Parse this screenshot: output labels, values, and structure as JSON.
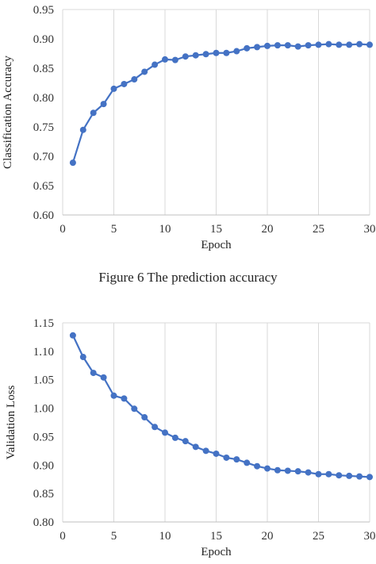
{
  "caption": "Figure 6 The prediction accuracy",
  "chart_data": [
    {
      "type": "line",
      "xlabel": "Epoch",
      "ylabel": "Classification Accuracy",
      "xlim": [
        0,
        30
      ],
      "ylim": [
        0.6,
        0.95
      ],
      "xticks": [
        "0",
        "5",
        "10",
        "15",
        "20",
        "25",
        "30"
      ],
      "yticks": [
        "0.60",
        "0.65",
        "0.70",
        "0.75",
        "0.80",
        "0.85",
        "0.90",
        "0.95"
      ],
      "grid": "vertical",
      "color": "#4472C4",
      "x": [
        1,
        2,
        3,
        4,
        5,
        6,
        7,
        8,
        9,
        10,
        11,
        12,
        13,
        14,
        15,
        16,
        17,
        18,
        19,
        20,
        21,
        22,
        23,
        24,
        25,
        26,
        27,
        28,
        29,
        30
      ],
      "y": [
        0.689,
        0.745,
        0.774,
        0.789,
        0.815,
        0.823,
        0.831,
        0.844,
        0.856,
        0.865,
        0.864,
        0.87,
        0.872,
        0.874,
        0.876,
        0.876,
        0.879,
        0.884,
        0.886,
        0.888,
        0.889,
        0.889,
        0.887,
        0.889,
        0.89,
        0.891,
        0.89,
        0.89,
        0.891,
        0.89
      ]
    },
    {
      "type": "line",
      "xlabel": "Epoch",
      "ylabel": "Validation Loss",
      "xlim": [
        0,
        30
      ],
      "ylim": [
        0.8,
        1.15
      ],
      "xticks": [
        "0",
        "5",
        "10",
        "15",
        "20",
        "25",
        "30"
      ],
      "yticks": [
        "0.80",
        "0.85",
        "0.90",
        "0.95",
        "1.00",
        "1.05",
        "1.10",
        "1.15"
      ],
      "grid": "vertical",
      "color": "#4472C4",
      "x": [
        1,
        2,
        3,
        4,
        5,
        6,
        7,
        8,
        9,
        10,
        11,
        12,
        13,
        14,
        15,
        16,
        17,
        18,
        19,
        20,
        21,
        22,
        23,
        24,
        25,
        26,
        27,
        28,
        29,
        30
      ],
      "y": [
        1.128,
        1.09,
        1.062,
        1.054,
        1.022,
        1.017,
        0.999,
        0.984,
        0.967,
        0.957,
        0.948,
        0.942,
        0.932,
        0.925,
        0.92,
        0.913,
        0.91,
        0.904,
        0.898,
        0.894,
        0.891,
        0.89,
        0.889,
        0.887,
        0.884,
        0.884,
        0.882,
        0.881,
        0.88,
        0.879
      ]
    }
  ]
}
